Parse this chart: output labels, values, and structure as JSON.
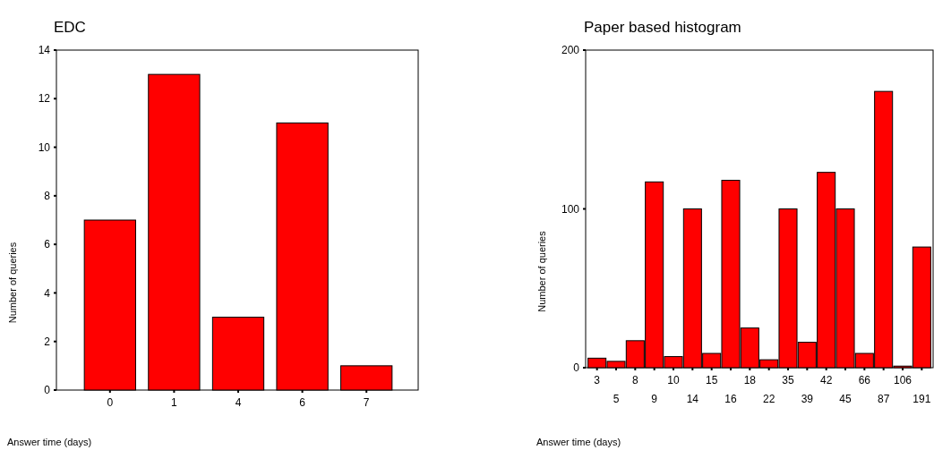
{
  "chart_data": [
    {
      "type": "bar",
      "title": "EDC",
      "xlabel": "Answer time (days)",
      "ylabel": "Number of queries",
      "categories": [
        "0",
        "1",
        "4",
        "6",
        "7"
      ],
      "values": [
        7,
        13,
        3,
        11,
        1
      ],
      "color": "#ff0000",
      "ylim": [
        0,
        14
      ],
      "yticks": [
        0,
        2,
        4,
        6,
        8,
        10,
        12,
        14
      ]
    },
    {
      "type": "bar",
      "title": "Paper based histogram",
      "xlabel": "Answer time (days)",
      "ylabel": "Number of queries",
      "categories": [
        "3",
        "5",
        "8",
        "9",
        "10",
        "14",
        "15",
        "16",
        "18",
        "22",
        "35",
        "39",
        "42",
        "45",
        "66",
        "87",
        "106",
        "191"
      ],
      "values": [
        6,
        4,
        17,
        117,
        7,
        100,
        9,
        118,
        25,
        5,
        100,
        16,
        123,
        100,
        9,
        174,
        1,
        76
      ],
      "color": "#ff0000",
      "ylim": [
        0,
        200
      ],
      "yticks": [
        0,
        100,
        200
      ]
    }
  ]
}
